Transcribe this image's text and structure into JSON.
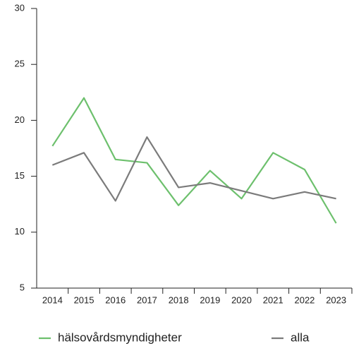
{
  "chart_data": {
    "type": "line",
    "categories": [
      "2014",
      "2015",
      "2016",
      "2017",
      "2018",
      "2019",
      "2020",
      "2021",
      "2022",
      "2023"
    ],
    "series": [
      {
        "name": "hälsovårdsmyndigheter",
        "color": "#6dc06d",
        "values": [
          17.7,
          22.0,
          16.5,
          16.2,
          12.4,
          15.5,
          13.0,
          17.1,
          15.6,
          10.8
        ]
      },
      {
        "name": "alla",
        "color": "#7b7b7b",
        "values": [
          16.0,
          17.1,
          12.8,
          18.5,
          14.0,
          14.4,
          13.7,
          13.0,
          13.6,
          13.0
        ]
      }
    ],
    "ylim": [
      5,
      30
    ],
    "yticks": [
      5,
      10,
      15,
      20,
      25,
      30
    ],
    "legend": "bottom"
  }
}
